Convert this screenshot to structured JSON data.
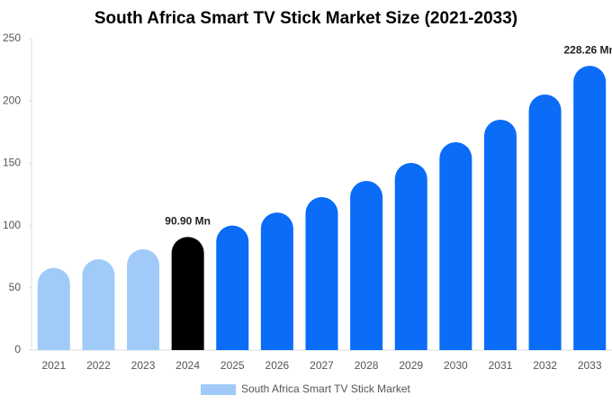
{
  "chart_data": {
    "type": "bar",
    "title": "South Africa Smart TV Stick Market Size (2021-2033)",
    "categories": [
      "2021",
      "2022",
      "2023",
      "2024",
      "2025",
      "2026",
      "2027",
      "2028",
      "2029",
      "2030",
      "2031",
      "2032",
      "2033"
    ],
    "series": [
      {
        "name": "South Africa Smart TV Stick Market",
        "color": "#a0cbf8",
        "colors": [
          "#a0cbf8",
          "#a0cbf8",
          "#a0cbf8",
          "#000000",
          "#0a6cf7",
          "#0a6cf7",
          "#0a6cf7",
          "#0a6cf7",
          "#0a6cf7",
          "#0a6cf7",
          "#0a6cf7",
          "#0a6cf7",
          "#0a6cf7"
        ],
        "values": [
          66,
          73,
          81,
          90.9,
          100,
          110.5,
          122.8,
          135.8,
          150.3,
          166.9,
          185,
          205.2,
          228.26
        ],
        "value_labels": [
          null,
          null,
          null,
          "90.90 Mn",
          null,
          null,
          null,
          null,
          null,
          null,
          null,
          null,
          "228.26 Mn"
        ]
      }
    ],
    "ylim": [
      0,
      250
    ],
    "yticks": [
      0,
      50,
      100,
      150,
      200,
      250
    ],
    "grid": false,
    "legend": "bottom"
  }
}
